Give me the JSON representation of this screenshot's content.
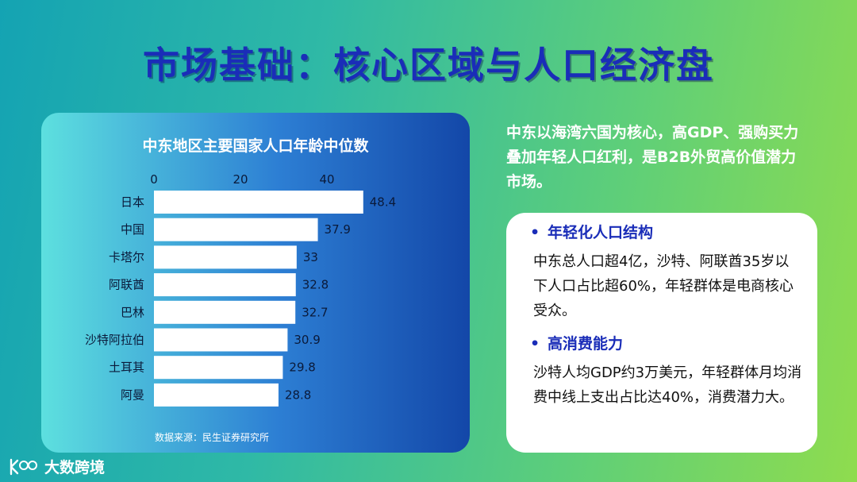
{
  "page": {
    "title": "市场基础：核心区域与人口经济盘"
  },
  "chart_data": {
    "type": "bar",
    "orientation": "horizontal",
    "title": "中东地区主要国家人口年龄中位数",
    "categories": [
      "日本",
      "中国",
      "卡塔尔",
      "阿联酋",
      "巴林",
      "沙特阿拉伯",
      "土耳其",
      "阿曼"
    ],
    "values": [
      48.4,
      37.9,
      33,
      32.8,
      32.7,
      30.9,
      29.8,
      28.8
    ],
    "value_labels": [
      "48.4",
      "37.9",
      "33",
      "32.8",
      "32.7",
      "30.9",
      "29.8",
      "28.8"
    ],
    "xticks": [
      "0",
      "20",
      "40"
    ],
    "xlim": [
      0,
      50
    ],
    "xlabel": "",
    "ylabel": "",
    "grid": false,
    "axis_position": "top",
    "bar_color": "#ffffff",
    "source": "数据来源：民生证券研究所"
  },
  "intro": {
    "text": "中东以海湾六国为核心，高GDP、强购买力叠加年轻人口红利，是B2B外贸高价值潜力市场。"
  },
  "points": [
    {
      "bullet": "•",
      "heading": "年轻化人口结构",
      "body": "中东总人口超4亿，沙特、阿联酋35岁以下人口占比超60%，年轻群体是电商核心受众。"
    },
    {
      "bullet": "•",
      "heading": "高消费能力",
      "body": "沙特人均GDP约3万美元，年轻群体月均消费中线上支出占比达40%，消费潜力大。"
    }
  ],
  "brand": {
    "name": "大数跨境",
    "logo_icon": "k-100-logo-icon"
  },
  "colors": {
    "title": "#1a2db8",
    "accent_heading": "#1a2db8",
    "card_bg": "#ffffff"
  }
}
